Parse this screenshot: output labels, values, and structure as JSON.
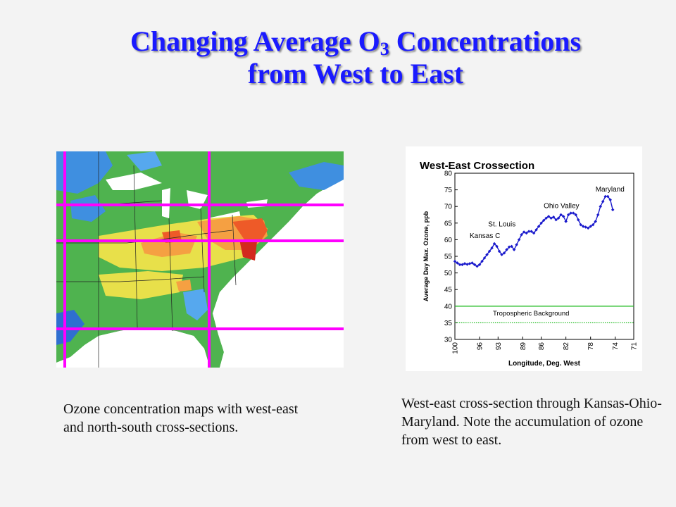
{
  "slide": {
    "title_prefix": "Changing Average O",
    "title_sub": "3",
    "title_suffix": " Concentrations",
    "title_line2": "from West to East"
  },
  "captions": {
    "left": "Ozone concentration maps with west-east and north-south cross-sections.",
    "right": "West-east cross-section through Kansas-Ohio-Maryland. Note the accumulation of ozone from west to east."
  },
  "colors": {
    "title": "#1a1aff",
    "crosshair": "#ff00ff",
    "series": "#1a1acc",
    "background_line": "#22bb22"
  },
  "chart_data": {
    "type": "line",
    "title": "West-East Crossection",
    "xlabel": "Longitude, Deg. West",
    "ylabel": "Average Day Max. Ozone, ppb",
    "x_reversed": true,
    "xlim": [
      100,
      71
    ],
    "ylim": [
      30,
      80
    ],
    "y_ticks": [
      "30",
      "35",
      "40",
      "45",
      "50",
      "55",
      "60",
      "65",
      "70",
      "75",
      "80"
    ],
    "x_ticks": [
      "100",
      "96",
      "93",
      "89",
      "86",
      "82",
      "78",
      "74",
      "71"
    ],
    "series": [
      {
        "x": [
          100,
          99.6,
          99.2,
          98.8,
          98.4,
          98,
          97.6,
          97.2,
          96.8,
          96.4,
          96,
          95.6,
          95.2,
          94.8,
          94.4,
          94,
          93.6,
          93.2,
          92.8,
          92.4,
          92,
          91.6,
          91.2,
          90.8,
          90.4,
          90,
          89.6,
          89.2,
          88.8,
          88.4,
          88,
          87.6,
          87.2,
          86.8,
          86.4,
          86,
          85.6,
          85.2,
          84.8,
          84.4,
          84,
          83.6,
          83.2,
          82.8,
          82.4,
          82,
          81.6,
          81.2,
          80.8,
          80.4,
          80,
          79.6,
          79.2,
          78.8,
          78.4,
          78,
          77.6,
          77.2,
          76.8,
          76.4,
          76,
          75.6,
          75.2,
          74.8,
          74.4
        ],
        "values": [
          53.5,
          53,
          52.5,
          52.5,
          52.8,
          52.6,
          52.8,
          53,
          52.5,
          52,
          52.5,
          53.5,
          54.5,
          55.5,
          56.5,
          57.5,
          58.8,
          58,
          56.5,
          55.5,
          56,
          57,
          57.8,
          58,
          57,
          58.5,
          60,
          61.5,
          62.3,
          62,
          62.5,
          62.5,
          62,
          63,
          64,
          65,
          65.8,
          66.5,
          67,
          66.5,
          66.8,
          66,
          66.5,
          67.5,
          67,
          65.5,
          67.5,
          68,
          68,
          67.5,
          66,
          64.5,
          64,
          63.8,
          63.5,
          64,
          64.5,
          65.5,
          67.5,
          70,
          71.5,
          73,
          73,
          72,
          69
        ]
      }
    ],
    "reference_lines": [
      {
        "name": "Tropospheric Background",
        "y": 40,
        "style": "solid"
      },
      {
        "name": "",
        "y": 35,
        "style": "dotted"
      }
    ],
    "annotations": [
      {
        "text": "Maryland",
        "x": 77.2,
        "y": 74.5
      },
      {
        "text": "Ohio Valley",
        "x": 85.6,
        "y": 69.5
      },
      {
        "text": "St. Louis",
        "x": 94.6,
        "y": 64
      },
      {
        "text": "Kansas C",
        "x": 97.6,
        "y": 60.5
      }
    ],
    "reference_label": "Tropospheric Background"
  }
}
